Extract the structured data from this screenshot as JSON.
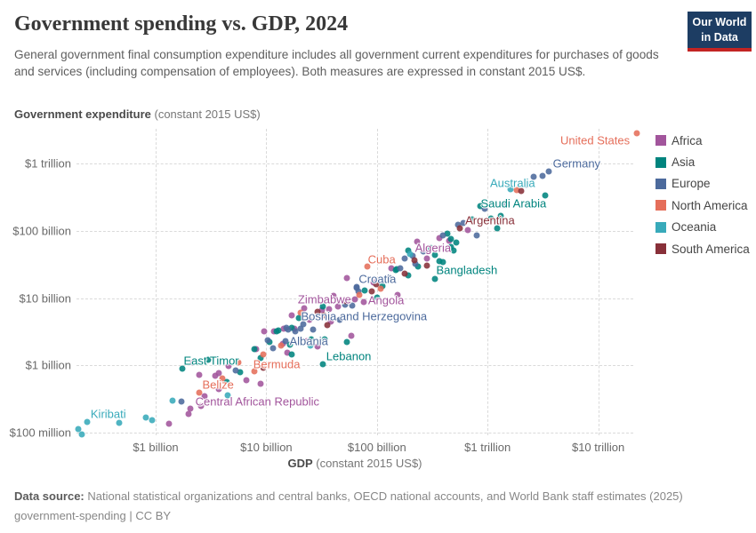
{
  "header": {
    "title": "Government spending vs. GDP, 2024",
    "subtitle": "General government final consumption expenditure includes all government current expenditures for purchases of goods and services (including compensation of employees). Both measures are expressed in constant 2015 US$.",
    "logo": {
      "line1": "Our World",
      "line2": "in Data",
      "bg": "#1d3d63",
      "accent": "#c32423"
    }
  },
  "axes": {
    "y_title_bold": "Government expenditure",
    "y_title_rest": " (constant 2015 US$)",
    "x_title_bold": "GDP",
    "x_title_rest": " (constant 2015 US$)"
  },
  "legend": {
    "items": [
      {
        "label": "Africa",
        "color": "#a2559c"
      },
      {
        "label": "Asia",
        "color": "#00847e"
      },
      {
        "label": "Europe",
        "color": "#4c6a9c"
      },
      {
        "label": "North America",
        "color": "#e56e5a"
      },
      {
        "label": "Oceania",
        "color": "#38aaba"
      },
      {
        "label": "South America",
        "color": "#883039"
      }
    ]
  },
  "chart_data": {
    "type": "scatter",
    "title": "Government spending vs. GDP, 2024",
    "xlabel": "GDP (constant 2015 US$)",
    "ylabel": "Government expenditure (constant 2015 US$)",
    "scale_note": "both axes log10 of US dollars; point values stored as log10(USD)",
    "x_ticks": [
      {
        "log10": 9,
        "label": "$1 billion"
      },
      {
        "log10": 10,
        "label": "$10 billion"
      },
      {
        "log10": 11,
        "label": "$100 billion"
      },
      {
        "log10": 12,
        "label": "$1 trillion"
      },
      {
        "log10": 13,
        "label": "$10 trillion"
      }
    ],
    "y_ticks": [
      {
        "log10": 8,
        "label": "$100 million"
      },
      {
        "log10": 9,
        "label": "$1 billion"
      },
      {
        "log10": 10,
        "label": "$10 billion"
      },
      {
        "log10": 11,
        "label": "$100 billion"
      },
      {
        "log10": 12,
        "label": "$1 trillion"
      }
    ],
    "series": [
      {
        "name": "Africa",
        "color": "#a2559c",
        "points": [
          [
            9.12,
            8.13
          ],
          [
            9.3,
            8.28
          ],
          [
            9.41,
            8.4
          ],
          [
            9.44,
            8.54
          ],
          [
            9.57,
            8.65
          ],
          [
            9.57,
            8.88
          ],
          [
            9.66,
            8.99
          ],
          [
            9.82,
            8.78
          ],
          [
            9.95,
            8.73
          ],
          [
            9.34,
            9.04
          ],
          [
            9.39,
            8.86
          ],
          [
            9.54,
            8.85
          ],
          [
            9.91,
            9.24
          ],
          [
            9.98,
            9.51
          ],
          [
            10.07,
            9.51
          ],
          [
            10.15,
            9.32
          ],
          [
            10.16,
            9.55
          ],
          [
            10.19,
            9.19
          ],
          [
            10.23,
            9.74
          ],
          [
            10.25,
            9.55
          ],
          [
            10.34,
            9.85
          ],
          [
            10.37,
            9.36
          ],
          [
            10.39,
            9.68
          ],
          [
            10.46,
            9.28
          ],
          [
            10.5,
            9.82
          ],
          [
            10.57,
            9.84
          ],
          [
            10.58,
            9.65
          ],
          [
            10.61,
            10.03
          ],
          [
            10.65,
            9.88
          ],
          [
            10.73,
            10.3
          ],
          [
            10.77,
            9.44
          ],
          [
            10.97,
            10.23
          ],
          [
            11.13,
            10.44
          ],
          [
            11.19,
            10.05
          ],
          [
            11.45,
            10.59
          ],
          [
            11.56,
            10.89
          ],
          [
            11.65,
            10.85
          ],
          [
            11.64,
            10.73
          ],
          [
            11.82,
            11.01
          ],
          {
            "g": 11.36,
            "e": 10.84,
            "label": "Algeria",
            "anchor": "left",
            "dx": -2,
            "dy": 7
          },
          {
            "g": 10.8,
            "e": 9.98,
            "label": "Zimbabwe",
            "anchor": "right",
            "dx": -4,
            "dy": 0
          },
          {
            "g": 10.88,
            "e": 9.94,
            "label": "Angola",
            "anchor": "left",
            "dx": 5,
            "dy": -2
          },
          {
            "g": 9.31,
            "e": 8.36,
            "label": "Central African Republic",
            "anchor": "left",
            "dx": 6,
            "dy": -8
          }
        ]
      },
      {
        "name": "Asia",
        "color": "#00847e",
        "points": [
          [
            9.24,
            8.95
          ],
          [
            9.64,
            8.75
          ],
          [
            9.76,
            8.9
          ],
          [
            9.89,
            9.24
          ],
          [
            9.95,
            9.11
          ],
          [
            10.03,
            9.35
          ],
          [
            10.09,
            9.51
          ],
          [
            10.11,
            9.52
          ],
          [
            10.21,
            9.31
          ],
          [
            10.23,
            9.56
          ],
          [
            10.23,
            9.16
          ],
          [
            10.29,
            9.7
          ],
          [
            10.41,
            9.39
          ],
          [
            10.51,
            9.88
          ],
          [
            10.53,
            9.39
          ],
          [
            10.73,
            9.35
          ],
          [
            10.89,
            10.11
          ],
          [
            11.0,
            10.01
          ],
          [
            11.05,
            10.18
          ],
          [
            11.17,
            10.42
          ],
          [
            11.18,
            10.43
          ],
          [
            11.28,
            10.71
          ],
          [
            11.28,
            10.34
          ],
          [
            11.37,
            10.47
          ],
          [
            11.48,
            10.75
          ],
          [
            11.52,
            10.64
          ],
          [
            11.56,
            10.55
          ],
          [
            11.6,
            10.54
          ],
          [
            11.64,
            10.96
          ],
          [
            11.67,
            10.88
          ],
          [
            11.67,
            10.76
          ],
          [
            11.69,
            10.71
          ],
          [
            11.72,
            10.83
          ],
          [
            11.86,
            11.17
          ],
          [
            12.03,
            11.18
          ],
          [
            12.09,
            11.04
          ],
          [
            12.12,
            11.22
          ],
          [
            12.52,
            11.53
          ],
          {
            "g": 11.93,
            "e": 11.37,
            "label": "Saudi Arabia",
            "anchor": "left",
            "dx": 1,
            "dy": -3
          },
          {
            "g": 11.52,
            "e": 10.28,
            "label": "Bangladesh",
            "anchor": "left",
            "dx": 2,
            "dy": -10
          },
          {
            "g": 10.51,
            "e": 9.02,
            "label": "Lebanon",
            "anchor": "left",
            "dx": 4,
            "dy": -9
          },
          {
            "g": 9.47,
            "e": 9.08,
            "label": "East Timor",
            "anchor": "left",
            "dx": -27,
            "dy": 1
          }
        ]
      },
      {
        "name": "Europe",
        "color": "#4c6a9c",
        "points": [
          [
            9.23,
            8.46
          ],
          [
            9.72,
            8.92
          ],
          [
            10.01,
            9.37
          ],
          [
            10.06,
            9.25
          ],
          [
            10.18,
            9.56
          ],
          [
            10.2,
            9.53
          ],
          [
            10.26,
            9.51
          ],
          [
            10.31,
            9.55
          ],
          [
            10.33,
            9.61
          ],
          [
            10.42,
            9.53
          ],
          [
            10.71,
            9.9
          ],
          [
            10.78,
            9.89
          ],
          [
            10.82,
            10.15
          ],
          [
            10.83,
            10.1
          ],
          [
            11.11,
            10.3
          ],
          [
            11.21,
            10.44
          ],
          [
            11.25,
            10.59
          ],
          [
            11.32,
            10.63
          ],
          [
            11.35,
            10.51
          ],
          [
            11.42,
            10.69
          ],
          [
            11.6,
            10.93
          ],
          [
            11.73,
            11.09
          ],
          [
            11.78,
            11.12
          ],
          [
            11.9,
            10.93
          ],
          [
            11.97,
            11.33
          ],
          [
            12.15,
            11.38
          ],
          [
            12.35,
            11.69
          ],
          [
            12.42,
            11.8
          ],
          [
            12.5,
            11.82
          ],
          {
            "g": 12.55,
            "e": 11.88,
            "label": "Germany",
            "anchor": "left",
            "dx": 5,
            "dy": -9
          },
          {
            "g": 10.82,
            "e": 10.17,
            "label": "Croatia",
            "anchor": "left",
            "dx": 2,
            "dy": -9
          },
          {
            "g": 10.66,
            "e": 9.68,
            "label": "Bosnia and Herzegovina",
            "anchor": "left",
            "dx": -43,
            "dy": -4
          },
          {
            "g": 10.17,
            "e": 9.36,
            "label": "Albania",
            "anchor": "left",
            "dx": 5,
            "dy": 0
          }
        ]
      },
      {
        "name": "North America",
        "color": "#e56e5a",
        "points": [
          [
            10.13,
            9.29
          ],
          [
            10.84,
            10.05
          ],
          [
            11.03,
            10.14
          ],
          [
            12.26,
            11.61
          ],
          [
            9.6,
            8.81
          ],
          [
            9.75,
            9.04
          ],
          [
            9.97,
            9.16
          ],
          [
            10.31,
            9.78
          ],
          {
            "g": 13.35,
            "e": 12.45,
            "label": "United States",
            "anchor": "right",
            "dx": -8,
            "dy": 8
          },
          {
            "g": 10.91,
            "e": 10.47,
            "label": "Cuba",
            "anchor": "left",
            "dx": 1,
            "dy": -8
          },
          {
            "g": 9.89,
            "e": 8.91,
            "label": "Bermuda",
            "anchor": "left",
            "dx": -1,
            "dy": -8
          },
          {
            "g": 9.39,
            "e": 8.59,
            "label": "Belize",
            "anchor": "left",
            "dx": 4,
            "dy": -9
          }
        ]
      },
      {
        "name": "Oceania",
        "color": "#38aaba",
        "points": [
          [
            8.3,
            8.05
          ],
          [
            8.33,
            7.97
          ],
          [
            8.67,
            8.15
          ],
          [
            8.91,
            8.22
          ],
          [
            8.97,
            8.18
          ],
          [
            9.15,
            8.48
          ],
          [
            9.65,
            8.55
          ],
          [
            10.4,
            9.3
          ],
          [
            11.3,
            10.66
          ],
          {
            "g": 8.38,
            "e": 8.16,
            "label": "Kiribati",
            "anchor": "left",
            "dx": 4,
            "dy": -9
          },
          {
            "g": 12.21,
            "e": 11.62,
            "label": "Australia",
            "anchor": "center",
            "dx": 2,
            "dy": -7
          }
        ]
      },
      {
        "name": "South America",
        "color": "#883039",
        "points": [
          [
            10.46,
            9.8
          ],
          [
            11.34,
            10.56
          ],
          [
            12.3,
            11.59
          ],
          [
            11.25,
            10.36
          ],
          [
            10.95,
            10.1
          ],
          [
            10.99,
            10.21
          ],
          [
            10.72,
            9.95
          ],
          [
            10.52,
            9.74
          ],
          [
            10.55,
            9.6
          ],
          [
            9.97,
            8.97
          ],
          [
            11.45,
            10.49
          ],
          {
            "g": 11.75,
            "e": 11.04,
            "label": "Argentina",
            "anchor": "left",
            "dx": 6,
            "dy": -9
          }
        ]
      }
    ]
  },
  "footer": {
    "line1_bold": "Data source:",
    "line1_rest": " National statistical organizations and central banks, OECD national accounts, and World Bank staff estimates (2025)",
    "line2": "government-spending | CC BY"
  }
}
